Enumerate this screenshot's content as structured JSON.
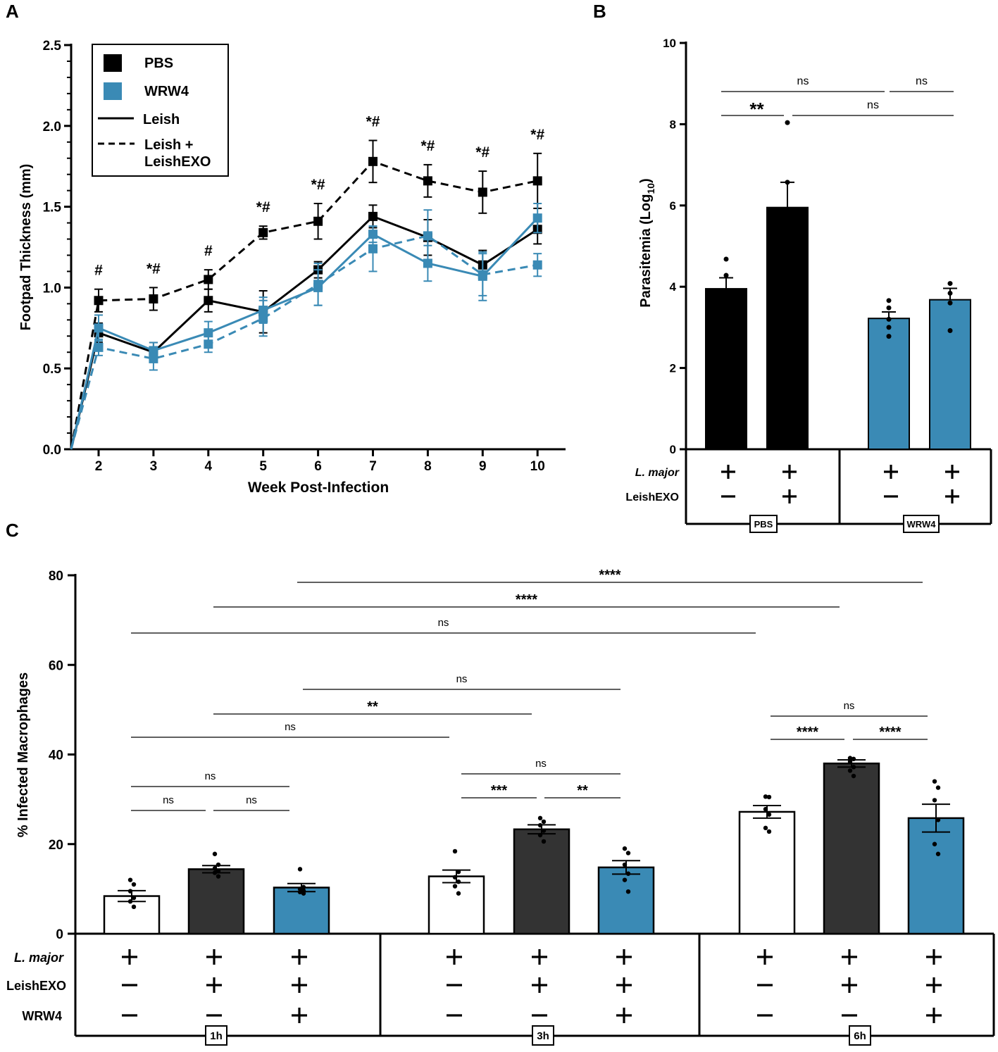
{
  "colors": {
    "pbs": "#000000",
    "wrw4": "#3a8ab5",
    "dark_bar": "#333333",
    "white_bar": "#ffffff"
  },
  "chart_data": [
    {
      "panel": "A",
      "type": "line",
      "xlabel": "Week Post-Infection",
      "ylabel": "Footpad Thickness (mm)",
      "ylim": [
        0,
        2.5
      ],
      "yticks": [
        "0.0",
        "0.5",
        "1.0",
        "1.5",
        "2.0",
        "2.5"
      ],
      "x": [
        2,
        3,
        4,
        5,
        6,
        7,
        8,
        9,
        10
      ],
      "legend": {
        "placement": "top-left",
        "entries": [
          "PBS",
          "WRW4",
          "Leish",
          "Leish +",
          "LeishEXO"
        ]
      },
      "series": [
        {
          "name": "PBS Leish",
          "color": "pbs",
          "dash": false,
          "values": [
            0.72,
            0.6,
            0.92,
            0.85,
            1.11,
            1.44,
            1.31,
            1.14,
            1.36
          ],
          "errors": [
            0.06,
            0.06,
            0.07,
            0.13,
            0.05,
            0.07,
            0.11,
            0.09,
            0.09
          ]
        },
        {
          "name": "PBS Leish + LeishEXO",
          "color": "pbs",
          "dash": true,
          "values": [
            0.92,
            0.93,
            1.05,
            1.34,
            1.41,
            1.78,
            1.66,
            1.59,
            1.66
          ],
          "errors": [
            0.07,
            0.07,
            0.06,
            0.04,
            0.11,
            0.13,
            0.1,
            0.13,
            0.17
          ]
        },
        {
          "name": "WRW4 Leish",
          "color": "wrw4",
          "dash": false,
          "values": [
            0.75,
            0.61,
            0.72,
            0.86,
            1.0,
            1.33,
            1.15,
            1.07,
            1.43
          ],
          "errors": [
            0.08,
            0.05,
            0.07,
            0.08,
            0.11,
            0.05,
            0.11,
            0.15,
            0.09
          ]
        },
        {
          "name": "WRW4 Leish + LeishEXO",
          "color": "wrw4",
          "dash": true,
          "values": [
            0.63,
            0.56,
            0.65,
            0.81,
            1.02,
            1.24,
            1.32,
            1.08,
            1.14
          ],
          "errors": [
            0.05,
            0.07,
            0.05,
            0.11,
            0.13,
            0.14,
            0.16,
            0.13,
            0.07
          ]
        }
      ],
      "annotations": [
        "#",
        "*#",
        "#",
        "*#",
        "*#",
        "*#",
        "*#",
        "*#",
        "*#"
      ]
    },
    {
      "panel": "B",
      "type": "bar",
      "ylabel": "Parasitemia (Log",
      "ylabel_sub": "10",
      "ylabel_close": ")",
      "ylim": [
        0,
        10
      ],
      "yticks": [
        "0",
        "2",
        "4",
        "6",
        "8",
        "10"
      ],
      "bars": [
        {
          "color": "pbs",
          "value": 3.95,
          "error": 0.27,
          "points": [
            4.68,
            4.28,
            3.86
          ]
        },
        {
          "color": "pbs",
          "value": 5.95,
          "error": 0.62,
          "points": [
            8.04,
            6.57,
            5.72
          ]
        },
        {
          "color": "wrw4",
          "value": 3.22,
          "error": 0.16,
          "points": [
            3.66,
            3.48,
            3.2,
            3.0,
            2.78
          ]
        },
        {
          "color": "wrw4",
          "value": 3.68,
          "error": 0.28,
          "points": [
            4.08,
            3.84,
            3.6,
            2.92
          ]
        }
      ],
      "row_labels": [
        "L. major",
        "LeishEXO"
      ],
      "rows": [
        [
          "+",
          "+",
          "+",
          "+"
        ],
        [
          "−",
          "+",
          "−",
          "+"
        ]
      ],
      "groups": [
        "PBS",
        "WRW4"
      ],
      "significance": [
        {
          "from": 0,
          "to": 2,
          "label": "ns"
        },
        {
          "from": 2,
          "to": 3,
          "label": "ns"
        },
        {
          "from": 0,
          "to": 1,
          "label": "**"
        },
        {
          "from": 1,
          "to": 3,
          "label": "ns"
        }
      ]
    },
    {
      "panel": "C",
      "type": "bar",
      "ylabel": "% Infected Macrophages",
      "ylim": [
        0,
        80
      ],
      "yticks": [
        "0",
        "20",
        "40",
        "60",
        "80"
      ],
      "bars": [
        {
          "color": "white_bar",
          "value": 8.4,
          "error": 1.2,
          "points": [
            12.0,
            11.0,
            9.5,
            8.0,
            7.2,
            6.0
          ]
        },
        {
          "color": "dark_bar",
          "value": 14.4,
          "error": 0.8,
          "points": [
            17.8,
            15.4,
            14.6,
            14.0,
            13.6,
            12.8
          ]
        },
        {
          "color": "wrw4",
          "value": 10.3,
          "error": 0.9,
          "points": [
            14.4,
            10.4,
            10.0,
            9.6,
            9.3,
            9.0
          ]
        },
        {
          "color": "white_bar",
          "value": 12.8,
          "error": 1.4,
          "points": [
            18.4,
            13.8,
            12.6,
            11.6,
            10.6,
            9.0
          ]
        },
        {
          "color": "dark_bar",
          "value": 23.3,
          "error": 1.0,
          "points": [
            25.8,
            25.0,
            24.2,
            23.0,
            22.0,
            20.6
          ]
        },
        {
          "color": "wrw4",
          "value": 14.8,
          "error": 1.5,
          "points": [
            19.0,
            18.0,
            15.4,
            13.4,
            12.0,
            9.4
          ]
        },
        {
          "color": "white_bar",
          "value": 27.2,
          "error": 1.4,
          "points": [
            30.6,
            30.5,
            27.8,
            26.6,
            23.6,
            22.8
          ]
        },
        {
          "color": "dark_bar",
          "value": 38.0,
          "error": 0.8,
          "points": [
            39.2,
            39.0,
            38.4,
            37.2,
            36.4,
            35.2
          ]
        },
        {
          "color": "wrw4",
          "value": 25.8,
          "error": 3.1,
          "points": [
            34.0,
            32.6,
            29.8,
            25.4,
            20.0,
            17.8
          ]
        }
      ],
      "row_labels": [
        "L. major",
        "LeishEXO",
        "WRW4"
      ],
      "rows": [
        [
          "+",
          "+",
          "+",
          "+",
          "+",
          "+",
          "+",
          "+",
          "+"
        ],
        [
          "−",
          "+",
          "+",
          "−",
          "+",
          "+",
          "−",
          "+",
          "+"
        ],
        [
          "−",
          "−",
          "+",
          "−",
          "−",
          "+",
          "−",
          "−",
          "+"
        ]
      ],
      "groups": [
        "1h",
        "3h",
        "6h"
      ],
      "significance": [
        {
          "from": 0,
          "to": 1,
          "label": "ns"
        },
        {
          "from": 1,
          "to": 2,
          "label": "ns"
        },
        {
          "from": 0,
          "to": 2,
          "label": "ns"
        },
        {
          "from": 0,
          "to": 3,
          "label": "ns"
        },
        {
          "from": 1,
          "to": 4,
          "label": "**"
        },
        {
          "from": 2,
          "to": 5,
          "label": "ns"
        },
        {
          "from": 3,
          "to": 4,
          "label": "***"
        },
        {
          "from": 4,
          "to": 5,
          "label": "**"
        },
        {
          "from": 3,
          "to": 5,
          "label": "ns"
        },
        {
          "from": 6,
          "to": 7,
          "label": "****"
        },
        {
          "from": 7,
          "to": 8,
          "label": "****"
        },
        {
          "from": 6,
          "to": 8,
          "label": "ns"
        },
        {
          "from": 0,
          "to": 6,
          "label": "ns"
        },
        {
          "from": 1,
          "to": 7,
          "label": "****"
        },
        {
          "from": 2,
          "to": 8,
          "label": "****"
        }
      ]
    }
  ]
}
